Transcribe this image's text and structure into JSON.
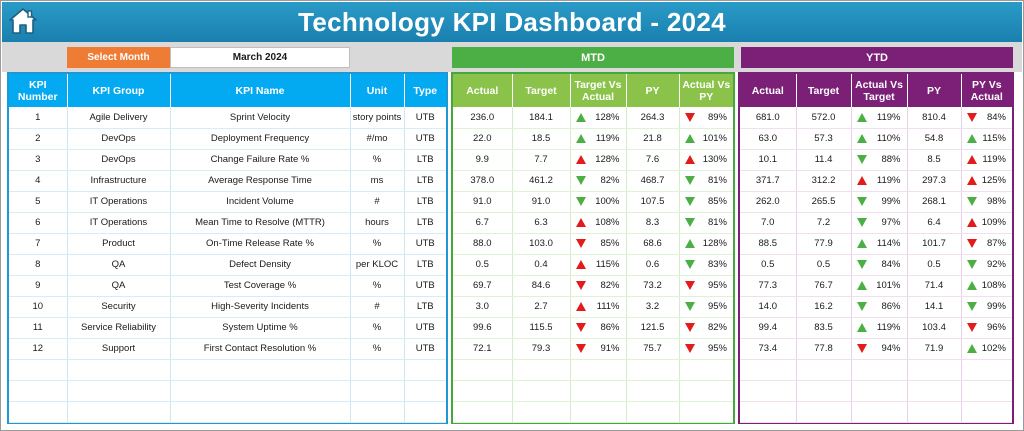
{
  "title": "Technology KPI Dashboard - 2024",
  "icons": {
    "home": "home-icon",
    "up": "triangle-up-icon",
    "down": "triangle-down-icon"
  },
  "colors": {
    "green": "#4caf45",
    "red": "#e21b1b",
    "title": "#1a88b9",
    "select_month": "#ef7c35",
    "mtd": "#4caf45",
    "ytd": "#7b1f77"
  },
  "filter": {
    "label": "Select Month",
    "value": "March 2024"
  },
  "mtd": {
    "label": "MTD"
  },
  "ytd": {
    "label": "YTD"
  },
  "kpi_headers": [
    "KPI Number",
    "KPI Group",
    "KPI Name",
    "Unit",
    "Type"
  ],
  "mtd_headers": [
    "Actual",
    "Target",
    "Target Vs Actual",
    "PY",
    "Actual Vs PY"
  ],
  "ytd_headers": [
    "Actual",
    "Target",
    "Actual Vs Target",
    "PY",
    "PY Vs Actual"
  ],
  "rows": [
    {
      "num": "1",
      "group": "Agile Delivery",
      "name": "Sprint Velocity",
      "unit": "story points",
      "type": "UTB",
      "mtd": {
        "actual": "236.0",
        "target": "184.1",
        "tva": "128%",
        "tva_dir": "up",
        "tva_color": "green",
        "py": "264.3",
        "avp": "89%",
        "avp_dir": "down",
        "avp_color": "red"
      },
      "ytd": {
        "actual": "681.0",
        "target": "572.0",
        "avt": "119%",
        "avt_dir": "up",
        "avt_color": "green",
        "py": "810.4",
        "pva": "84%",
        "pva_dir": "down",
        "pva_color": "red"
      }
    },
    {
      "num": "2",
      "group": "DevOps",
      "name": "Deployment Frequency",
      "unit": "#/mo",
      "type": "UTB",
      "mtd": {
        "actual": "22.0",
        "target": "18.5",
        "tva": "119%",
        "tva_dir": "up",
        "tva_color": "green",
        "py": "21.8",
        "avp": "101%",
        "avp_dir": "up",
        "avp_color": "green"
      },
      "ytd": {
        "actual": "63.0",
        "target": "57.3",
        "avt": "110%",
        "avt_dir": "up",
        "avt_color": "green",
        "py": "54.8",
        "pva": "115%",
        "pva_dir": "up",
        "pva_color": "green"
      }
    },
    {
      "num": "3",
      "group": "DevOps",
      "name": "Change Failure Rate %",
      "unit": "%",
      "type": "LTB",
      "mtd": {
        "actual": "9.9",
        "target": "7.7",
        "tva": "128%",
        "tva_dir": "up",
        "tva_color": "red",
        "py": "7.6",
        "avp": "130%",
        "avp_dir": "up",
        "avp_color": "red"
      },
      "ytd": {
        "actual": "10.1",
        "target": "11.4",
        "avt": "88%",
        "avt_dir": "down",
        "avt_color": "green",
        "py": "8.5",
        "pva": "119%",
        "pva_dir": "up",
        "pva_color": "red"
      }
    },
    {
      "num": "4",
      "group": "Infrastructure",
      "name": "Average Response Time",
      "unit": "ms",
      "type": "LTB",
      "mtd": {
        "actual": "378.0",
        "target": "461.2",
        "tva": "82%",
        "tva_dir": "down",
        "tva_color": "green",
        "py": "468.7",
        "avp": "81%",
        "avp_dir": "down",
        "avp_color": "green"
      },
      "ytd": {
        "actual": "371.7",
        "target": "312.2",
        "avt": "119%",
        "avt_dir": "up",
        "avt_color": "red",
        "py": "297.3",
        "pva": "125%",
        "pva_dir": "up",
        "pva_color": "red"
      }
    },
    {
      "num": "5",
      "group": "IT Operations",
      "name": "Incident Volume",
      "unit": "#",
      "type": "LTB",
      "mtd": {
        "actual": "91.0",
        "target": "91.0",
        "tva": "100%",
        "tva_dir": "down",
        "tva_color": "green",
        "py": "107.5",
        "avp": "85%",
        "avp_dir": "down",
        "avp_color": "green"
      },
      "ytd": {
        "actual": "262.0",
        "target": "265.5",
        "avt": "99%",
        "avt_dir": "down",
        "avt_color": "green",
        "py": "268.1",
        "pva": "98%",
        "pva_dir": "down",
        "pva_color": "green"
      }
    },
    {
      "num": "6",
      "group": "IT Operations",
      "name": "Mean Time to Resolve (MTTR)",
      "unit": "hours",
      "type": "LTB",
      "mtd": {
        "actual": "6.7",
        "target": "6.3",
        "tva": "108%",
        "tva_dir": "up",
        "tva_color": "red",
        "py": "8.3",
        "avp": "81%",
        "avp_dir": "down",
        "avp_color": "green"
      },
      "ytd": {
        "actual": "7.0",
        "target": "7.2",
        "avt": "97%",
        "avt_dir": "down",
        "avt_color": "green",
        "py": "6.4",
        "pva": "109%",
        "pva_dir": "up",
        "pva_color": "red"
      }
    },
    {
      "num": "7",
      "group": "Product",
      "name": "On-Time Release Rate %",
      "unit": "%",
      "type": "UTB",
      "mtd": {
        "actual": "88.0",
        "target": "103.0",
        "tva": "85%",
        "tva_dir": "down",
        "tva_color": "red",
        "py": "68.6",
        "avp": "128%",
        "avp_dir": "up",
        "avp_color": "green"
      },
      "ytd": {
        "actual": "88.5",
        "target": "77.9",
        "avt": "114%",
        "avt_dir": "up",
        "avt_color": "green",
        "py": "101.7",
        "pva": "87%",
        "pva_dir": "down",
        "pva_color": "red"
      }
    },
    {
      "num": "8",
      "group": "QA",
      "name": "Defect Density",
      "unit": "per KLOC",
      "type": "LTB",
      "mtd": {
        "actual": "0.5",
        "target": "0.4",
        "tva": "115%",
        "tva_dir": "up",
        "tva_color": "red",
        "py": "0.6",
        "avp": "83%",
        "avp_dir": "down",
        "avp_color": "green"
      },
      "ytd": {
        "actual": "0.5",
        "target": "0.5",
        "avt": "84%",
        "avt_dir": "down",
        "avt_color": "green",
        "py": "0.5",
        "pva": "92%",
        "pva_dir": "down",
        "pva_color": "green"
      }
    },
    {
      "num": "9",
      "group": "QA",
      "name": "Test Coverage %",
      "unit": "%",
      "type": "UTB",
      "mtd": {
        "actual": "69.7",
        "target": "84.6",
        "tva": "82%",
        "tva_dir": "down",
        "tva_color": "red",
        "py": "73.2",
        "avp": "95%",
        "avp_dir": "down",
        "avp_color": "red"
      },
      "ytd": {
        "actual": "77.3",
        "target": "76.7",
        "avt": "101%",
        "avt_dir": "up",
        "avt_color": "green",
        "py": "71.4",
        "pva": "108%",
        "pva_dir": "up",
        "pva_color": "green"
      }
    },
    {
      "num": "10",
      "group": "Security",
      "name": "High-Severity Incidents",
      "unit": "#",
      "type": "LTB",
      "mtd": {
        "actual": "3.0",
        "target": "2.7",
        "tva": "111%",
        "tva_dir": "up",
        "tva_color": "red",
        "py": "3.2",
        "avp": "95%",
        "avp_dir": "down",
        "avp_color": "green"
      },
      "ytd": {
        "actual": "14.0",
        "target": "16.2",
        "avt": "86%",
        "avt_dir": "down",
        "avt_color": "green",
        "py": "14.1",
        "pva": "99%",
        "pva_dir": "down",
        "pva_color": "green"
      }
    },
    {
      "num": "11",
      "group": "Service Reliability",
      "name": "System Uptime %",
      "unit": "%",
      "type": "UTB",
      "mtd": {
        "actual": "99.6",
        "target": "115.5",
        "tva": "86%",
        "tva_dir": "down",
        "tva_color": "red",
        "py": "121.5",
        "avp": "82%",
        "avp_dir": "down",
        "avp_color": "red"
      },
      "ytd": {
        "actual": "99.4",
        "target": "83.5",
        "avt": "119%",
        "avt_dir": "up",
        "avt_color": "green",
        "py": "103.4",
        "pva": "96%",
        "pva_dir": "down",
        "pva_color": "red"
      }
    },
    {
      "num": "12",
      "group": "Support",
      "name": "First Contact Resolution %",
      "unit": "%",
      "type": "UTB",
      "mtd": {
        "actual": "72.1",
        "target": "79.3",
        "tva": "91%",
        "tva_dir": "down",
        "tva_color": "red",
        "py": "75.7",
        "avp": "95%",
        "avp_dir": "down",
        "avp_color": "red"
      },
      "ytd": {
        "actual": "73.4",
        "target": "77.8",
        "avt": "94%",
        "avt_dir": "down",
        "avt_color": "red",
        "py": "71.9",
        "pva": "102%",
        "pva_dir": "up",
        "pva_color": "green"
      }
    }
  ],
  "empty_row_count": 3
}
